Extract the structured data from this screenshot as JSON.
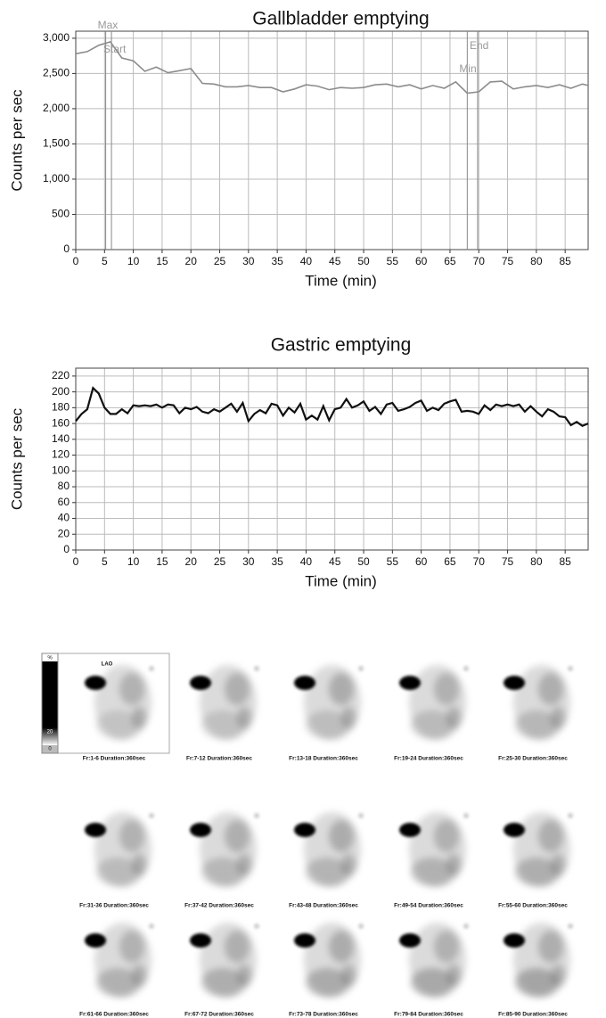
{
  "chart_data": [
    {
      "type": "line",
      "title": "Gallbladder emptying",
      "xlabel": "Time (min)",
      "ylabel": "Counts per sec",
      "color": "#8c8c8c",
      "grid": true,
      "x": [
        0,
        2,
        4,
        6,
        8,
        10,
        12,
        14,
        16,
        18,
        20,
        22,
        24,
        26,
        28,
        30,
        32,
        34,
        36,
        38,
        40,
        42,
        44,
        46,
        48,
        50,
        52,
        54,
        56,
        58,
        60,
        62,
        64,
        66,
        68,
        70,
        72,
        74,
        76,
        78,
        80,
        82,
        84,
        86,
        88,
        89
      ],
      "values": [
        2780,
        2810,
        2900,
        2950,
        2720,
        2680,
        2530,
        2590,
        2510,
        2540,
        2570,
        2360,
        2350,
        2310,
        2310,
        2330,
        2300,
        2300,
        2240,
        2280,
        2340,
        2320,
        2270,
        2300,
        2290,
        2300,
        2340,
        2350,
        2310,
        2340,
        2280,
        2330,
        2290,
        2380,
        2220,
        2240,
        2380,
        2390,
        2280,
        2310,
        2330,
        2300,
        2340,
        2290,
        2350,
        2330
      ],
      "xlim": [
        0,
        89
      ],
      "xticks": [
        0,
        5,
        10,
        15,
        20,
        25,
        30,
        35,
        40,
        45,
        50,
        55,
        60,
        65,
        70,
        75,
        80,
        85
      ],
      "ylim": [
        0,
        3100
      ],
      "yticks": [
        0,
        {
          "value": 500,
          "label": "500"
        },
        {
          "value": 1000,
          "label": "1,000"
        },
        {
          "value": 1500,
          "label": "1,500"
        },
        {
          "value": 2000,
          "label": "2,000"
        },
        {
          "value": 2500,
          "label": "2,500"
        },
        {
          "value": 3000,
          "label": "3,000"
        }
      ],
      "annotations": [
        {
          "x": 5.2,
          "label": "Max"
        },
        {
          "x": 6.2,
          "label": "Start"
        },
        {
          "x": 68,
          "label": "Min"
        },
        {
          "x": 69.8,
          "label": "End"
        }
      ]
    },
    {
      "type": "line",
      "title": "Gastric emptying",
      "xlabel": "Time (min)",
      "ylabel": "Counts per sec",
      "color": "#111111",
      "grid": true,
      "x": [
        0,
        1,
        2,
        3,
        4,
        5,
        6,
        7,
        8,
        9,
        10,
        11,
        12,
        13,
        14,
        15,
        16,
        17,
        18,
        19,
        20,
        21,
        22,
        23,
        24,
        25,
        26,
        27,
        28,
        29,
        30,
        31,
        32,
        33,
        34,
        35,
        36,
        37,
        38,
        39,
        40,
        41,
        42,
        43,
        44,
        45,
        46,
        47,
        48,
        49,
        50,
        51,
        52,
        53,
        54,
        55,
        56,
        57,
        58,
        59,
        60,
        61,
        62,
        63,
        64,
        65,
        66,
        67,
        68,
        69,
        70,
        71,
        72,
        73,
        74,
        75,
        76,
        77,
        78,
        79,
        80,
        81,
        82,
        83,
        84,
        85,
        86,
        87,
        88,
        89
      ],
      "values": [
        163,
        172,
        178,
        205,
        198,
        180,
        172,
        172,
        178,
        173,
        183,
        182,
        183,
        182,
        184,
        180,
        184,
        183,
        173,
        180,
        178,
        181,
        175,
        173,
        178,
        175,
        180,
        185,
        175,
        186,
        163,
        172,
        177,
        173,
        185,
        183,
        170,
        180,
        174,
        185,
        165,
        170,
        165,
        182,
        164,
        178,
        180,
        191,
        180,
        183,
        188,
        176,
        181,
        172,
        184,
        186,
        176,
        178,
        181,
        186,
        189,
        176,
        180,
        177,
        185,
        188,
        190,
        175,
        176,
        175,
        172,
        183,
        177,
        184,
        182,
        184,
        182,
        184,
        175,
        182,
        175,
        169,
        178,
        175,
        169,
        168,
        158,
        162,
        157,
        160
      ],
      "xlim": [
        0,
        89
      ],
      "xticks": [
        0,
        5,
        10,
        15,
        20,
        25,
        30,
        35,
        40,
        45,
        50,
        55,
        60,
        65,
        70,
        75,
        80,
        85
      ],
      "ylim": [
        0,
        230
      ],
      "yticks": [
        0,
        20,
        40,
        60,
        80,
        100,
        120,
        140,
        160,
        180,
        200,
        220
      ]
    }
  ],
  "image_panel": {
    "view": "LAO",
    "colorbar": [
      "%",
      "20",
      "0"
    ],
    "captions": [
      "Fr:1-6 Duration:360sec",
      "Fr:7-12 Duration:360sec",
      "Fr:13-18 Duration:360sec",
      "Fr:19-24 Duration:360sec",
      "Fr:25-30 Duration:360sec",
      "Fr:31-36 Duration:360sec",
      "Fr:37-42 Duration:360sec",
      "Fr:43-48 Duration:360sec",
      "Fr:49-54 Duration:360sec",
      "Fr:55-60 Duration:360sec",
      "Fr:61-66 Duration:360sec",
      "Fr:67-72 Duration:360sec",
      "Fr:73-78 Duration:360sec",
      "Fr:79-84 Duration:360sec",
      "Fr:85-90 Duration:360sec"
    ]
  }
}
